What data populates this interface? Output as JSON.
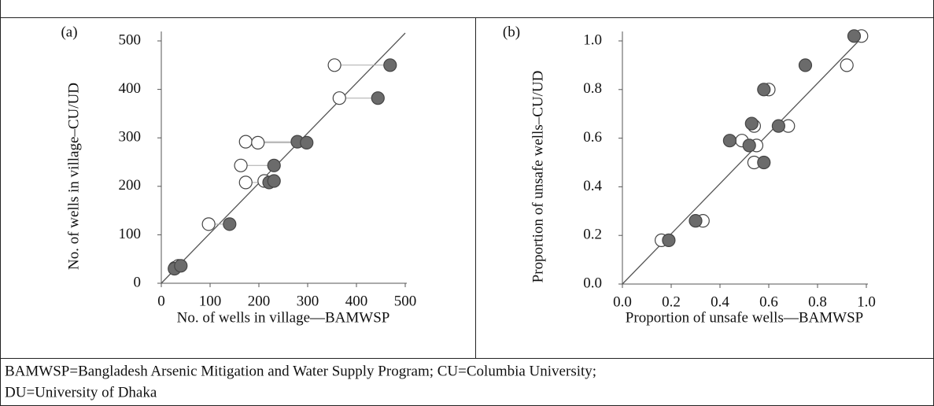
{
  "chart_data": [
    {
      "type": "scatter",
      "panel_label": "(a)",
      "xlabel": "No. of wells in village—BAMWSP",
      "ylabel": "No. of wells in village–CU/UD",
      "xlim": [
        0,
        500
      ],
      "ylim": [
        0,
        500
      ],
      "xticks": [
        0,
        100,
        200,
        300,
        400,
        500
      ],
      "yticks": [
        0,
        100,
        200,
        300,
        400,
        500
      ],
      "diagonal": true,
      "connectors": true,
      "series": [
        {
          "marker": "open",
          "color": "#ffffff",
          "x": [
            355,
            365,
            173,
            198,
            163,
            173,
            211,
            97,
            28,
            35
          ],
          "values": [
            450,
            382,
            292,
            290,
            243,
            208,
            211,
            122,
            32,
            36
          ]
        },
        {
          "marker": "filled",
          "color": "#6b6b6b",
          "x": [
            469,
            444,
            279,
            298,
            231,
            221,
            231,
            140,
            27,
            40
          ],
          "values": [
            450,
            382,
            292,
            290,
            243,
            208,
            211,
            122,
            30,
            36
          ]
        }
      ]
    },
    {
      "type": "scatter",
      "panel_label": "(b)",
      "xlabel": "Proportion of unsafe wells—BAMWSP",
      "ylabel": "Proportion of unsafe wells–CU/UD",
      "xlim": [
        0,
        1
      ],
      "ylim": [
        0,
        1
      ],
      "xticks": [
        {
          "value": 0,
          "label": "0.0"
        },
        0.2,
        0.4,
        0.6,
        0.8,
        {
          "value": 1,
          "label": "1.0"
        }
      ],
      "yticks": [
        {
          "value": 0,
          "label": "0.0"
        },
        0.2,
        0.4,
        0.6,
        0.8,
        {
          "value": 1,
          "label": "1.0"
        }
      ],
      "diagonal": true,
      "connectors": false,
      "series": [
        {
          "marker": "open",
          "color": "#ffffff",
          "x": [
            0.98,
            0.92,
            0.6,
            0.54,
            0.68,
            0.49,
            0.55,
            0.54,
            0.33,
            0.16
          ],
          "values": [
            1.02,
            0.9,
            0.8,
            0.65,
            0.65,
            0.59,
            0.57,
            0.5,
            0.26,
            0.18
          ]
        },
        {
          "marker": "filled",
          "color": "#6b6b6b",
          "x": [
            0.95,
            0.75,
            0.58,
            0.53,
            0.64,
            0.44,
            0.52,
            0.58,
            0.3,
            0.19
          ],
          "values": [
            1.02,
            0.9,
            0.8,
            0.66,
            0.65,
            0.59,
            0.57,
            0.5,
            0.26,
            0.18
          ]
        }
      ]
    }
  ],
  "footnote": [
    "BAMWSP=Bangladesh Arsenic Mitigation and Water Supply Program; CU=Columbia University;",
    "DU=University of Dhaka"
  ]
}
